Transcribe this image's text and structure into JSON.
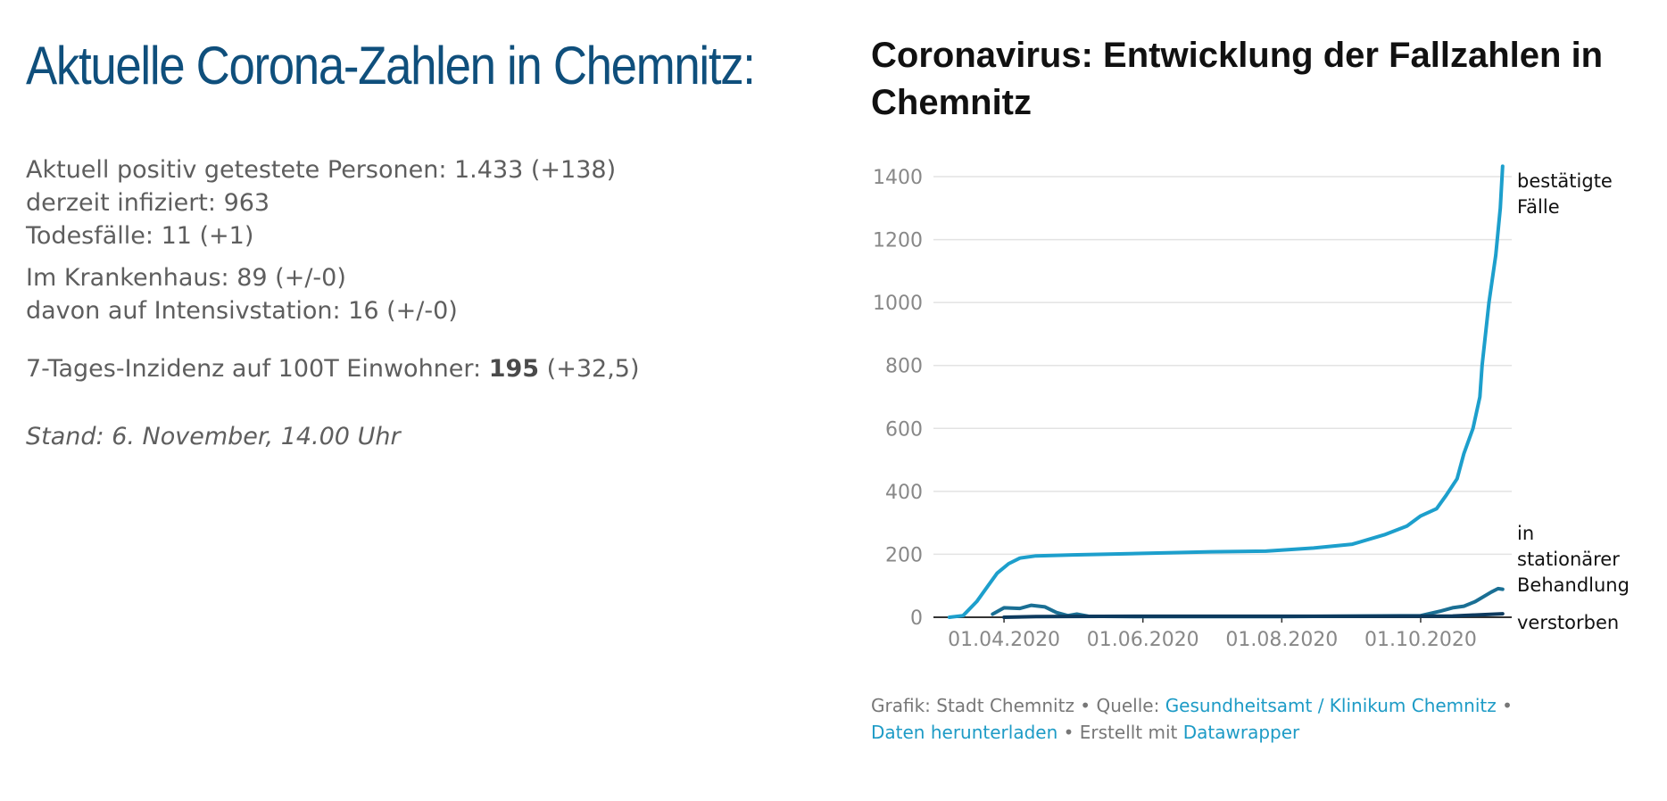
{
  "left": {
    "title": "Aktuelle Corona-Zahlen in Chemnitz:",
    "line1": "Aktuell positiv getestete Personen: 1.433 (+138)",
    "line2": "derzeit infiziert: 963",
    "line3": "Todesfälle: 11 (+1)",
    "line4": "Im Krankenhaus: 89 (+/-0)",
    "line5": "davon auf Intensivstation: 16 (+/-0)",
    "incidence_label": "7-Tages-Inzidenz auf 100T Einwohner: ",
    "incidence_value": "195",
    "incidence_change": " (+32,5)",
    "stand": "Stand: 6. November, 14.00 Uhr"
  },
  "chart": {
    "title": "Coronavirus: Entwicklung der Fallzahlen in Chemnitz",
    "footer": {
      "prefix": "Grafik: Stadt Chemnitz • Quelle: ",
      "source_link": "Gesundheitsamt / Klinikum Chemnitz",
      "sep1": " •",
      "download_link": "Daten herunterladen",
      "sep2": " • Erstellt mit ",
      "dw_link": "Datawrapper"
    },
    "colors": {
      "confirmed": "#1d9fcc",
      "hospital": "#1a6f94",
      "deaths": "#0d3a5e",
      "grid": "#e3e3e3",
      "axis": "#333333"
    }
  },
  "chart_data": {
    "type": "line",
    "title": "Coronavirus: Entwicklung der Fallzahlen in Chemnitz",
    "xlabel": "",
    "ylabel": "",
    "ylim": [
      0,
      1400
    ],
    "yticks": [
      "0",
      "200",
      "400",
      "600",
      "800",
      "1000",
      "1200",
      "1400"
    ],
    "xticks": [
      "01.04.2020",
      "01.06.2020",
      "01.08.2020",
      "01.10.2020"
    ],
    "grid": true,
    "series": [
      {
        "name": "bestätigte Fälle",
        "points": [
          [
            "2020-03-08",
            0
          ],
          [
            "2020-03-14",
            5
          ],
          [
            "2020-03-20",
            50
          ],
          [
            "2020-03-25",
            100
          ],
          [
            "2020-03-29",
            140
          ],
          [
            "2020-04-03",
            170
          ],
          [
            "2020-04-08",
            188
          ],
          [
            "2020-04-15",
            195
          ],
          [
            "2020-05-01",
            198
          ],
          [
            "2020-06-01",
            203
          ],
          [
            "2020-07-01",
            208
          ],
          [
            "2020-07-25",
            210
          ],
          [
            "2020-08-15",
            220
          ],
          [
            "2020-09-01",
            232
          ],
          [
            "2020-09-15",
            262
          ],
          [
            "2020-09-25",
            290
          ],
          [
            "2020-10-01",
            322
          ],
          [
            "2020-10-08",
            345
          ],
          [
            "2020-10-12",
            385
          ],
          [
            "2020-10-17",
            440
          ],
          [
            "2020-10-20",
            520
          ],
          [
            "2020-10-24",
            600
          ],
          [
            "2020-10-27",
            700
          ],
          [
            "2020-10-28",
            800
          ],
          [
            "2020-10-31",
            1000
          ],
          [
            "2020-11-03",
            1150
          ],
          [
            "2020-11-05",
            1300
          ],
          [
            "2020-11-06",
            1433
          ]
        ]
      },
      {
        "name": "in stationärer Behandlung",
        "points": [
          [
            "2020-03-27",
            10
          ],
          [
            "2020-04-01",
            30
          ],
          [
            "2020-04-08",
            28
          ],
          [
            "2020-04-13",
            38
          ],
          [
            "2020-04-19",
            33
          ],
          [
            "2020-04-24",
            15
          ],
          [
            "2020-04-29",
            5
          ],
          [
            "2020-05-03",
            10
          ],
          [
            "2020-05-08",
            3
          ],
          [
            "2020-06-01",
            2
          ],
          [
            "2020-08-01",
            2
          ],
          [
            "2020-10-01",
            5
          ],
          [
            "2020-10-10",
            20
          ],
          [
            "2020-10-15",
            30
          ],
          [
            "2020-10-20",
            35
          ],
          [
            "2020-10-25",
            50
          ],
          [
            "2020-11-01",
            80
          ],
          [
            "2020-11-04",
            91
          ],
          [
            "2020-11-06",
            89
          ]
        ]
      },
      {
        "name": "verstorben",
        "points": [
          [
            "2020-04-01",
            0
          ],
          [
            "2020-04-15",
            2
          ],
          [
            "2020-06-01",
            3
          ],
          [
            "2020-09-01",
            3
          ],
          [
            "2020-10-15",
            4
          ],
          [
            "2020-10-25",
            7
          ],
          [
            "2020-11-06",
            11
          ]
        ]
      }
    ]
  }
}
